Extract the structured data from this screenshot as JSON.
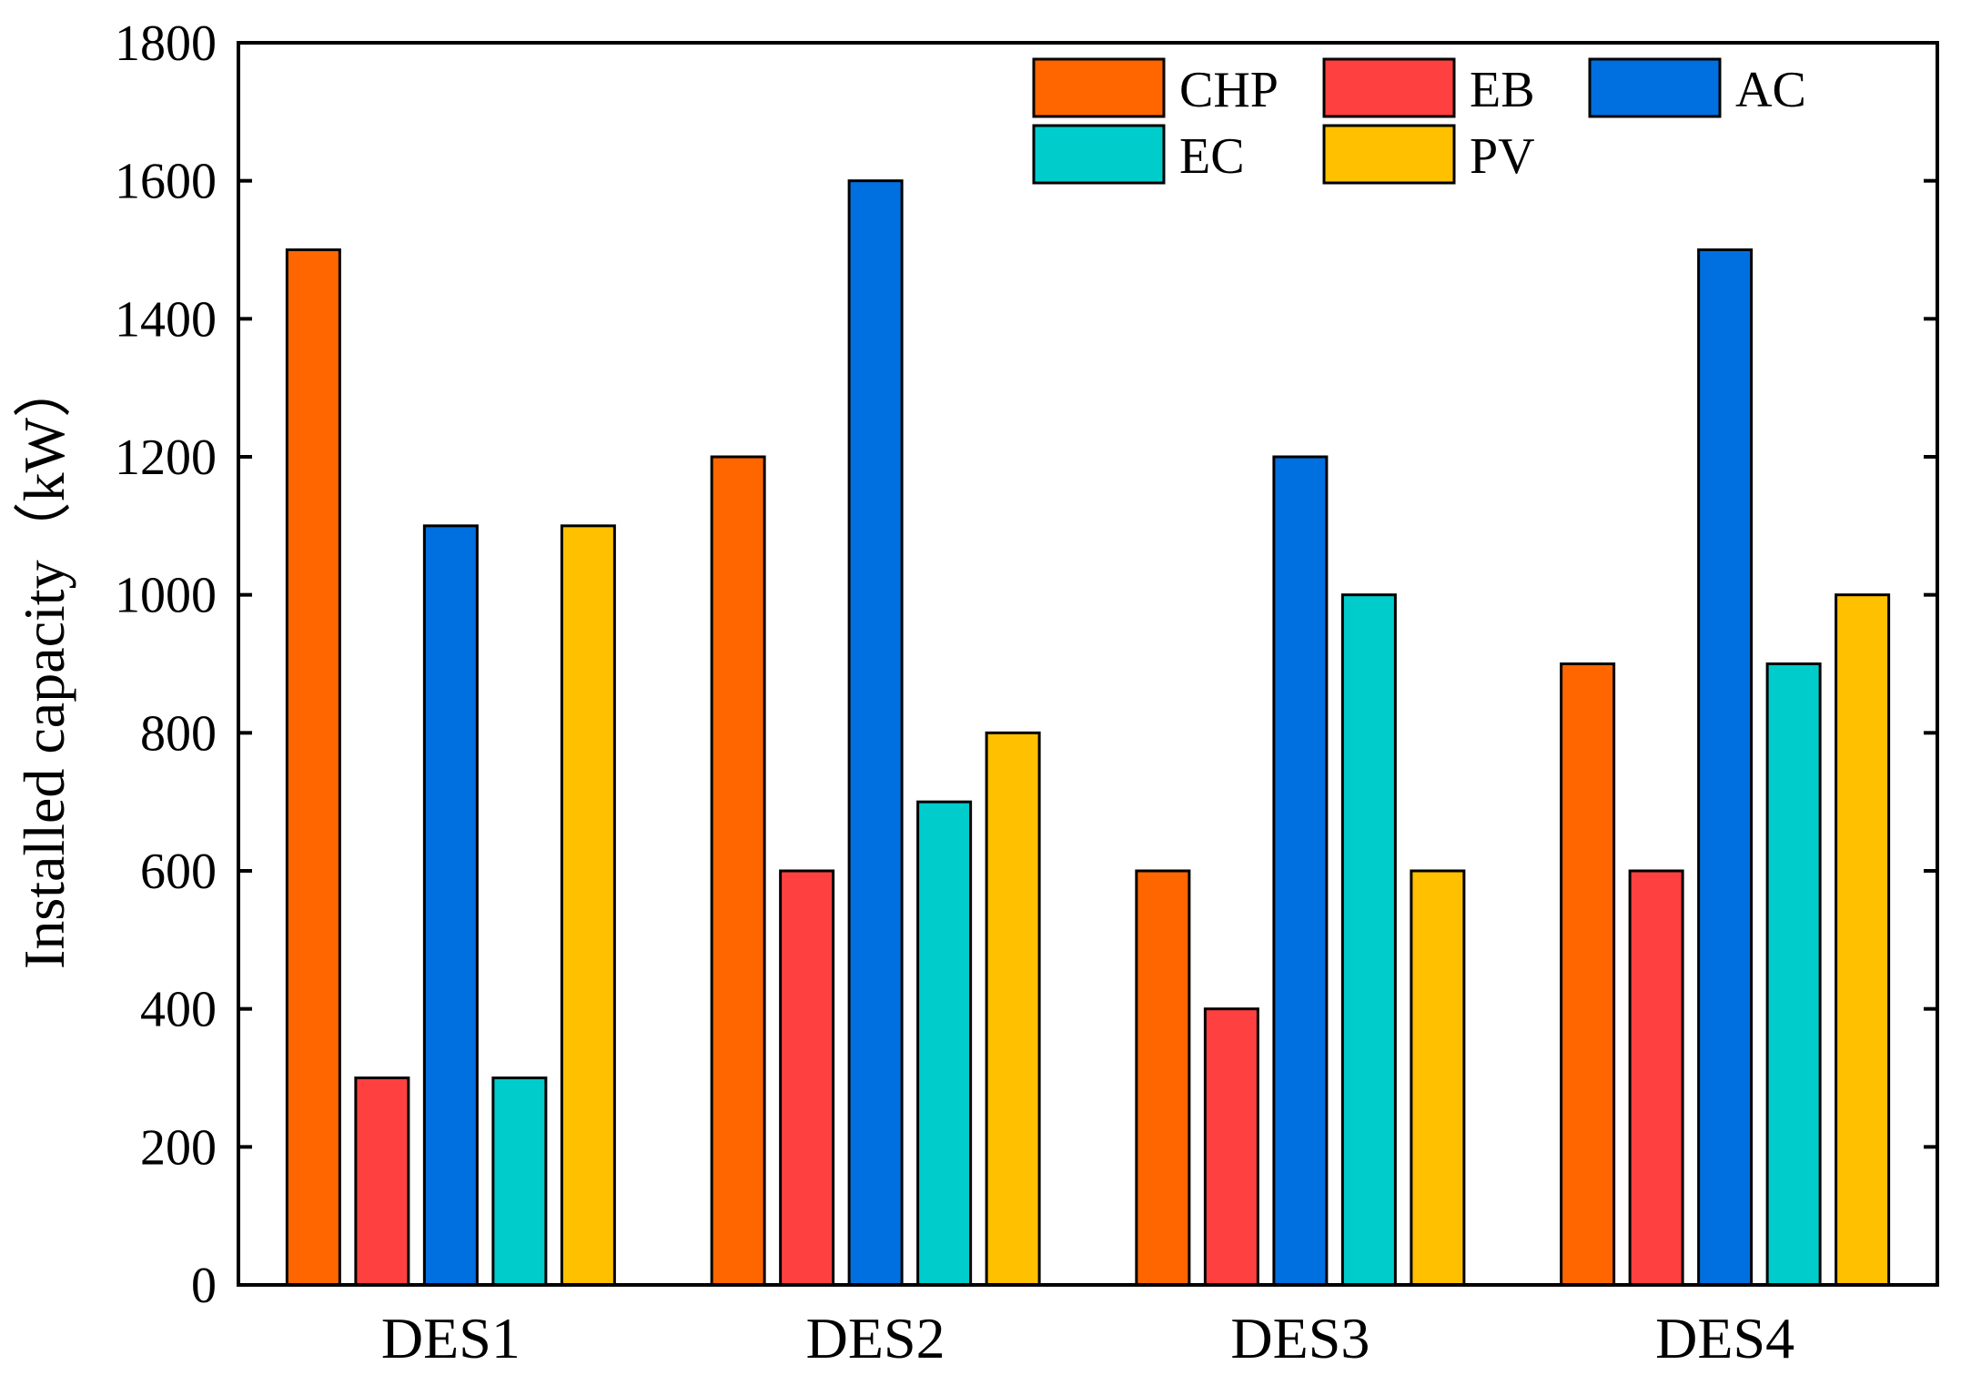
{
  "chart_data": {
    "type": "bar",
    "title": "",
    "xlabel": "",
    "ylabel": "Installed capacity（kW）",
    "ylim": [
      0,
      1800
    ],
    "yticks": [
      0,
      200,
      400,
      600,
      800,
      1000,
      1200,
      1400,
      1600,
      1800
    ],
    "categories": [
      "DES1",
      "DES2",
      "DES3",
      "DES4"
    ],
    "series": [
      {
        "name": "CHP",
        "color": "#FF6600",
        "values": [
          1500,
          1200,
          600,
          900
        ]
      },
      {
        "name": "EB",
        "color": "#FF4040",
        "values": [
          300,
          600,
          400,
          600
        ]
      },
      {
        "name": "AC",
        "color": "#0070E0",
        "values": [
          1100,
          1600,
          1200,
          1500
        ]
      },
      {
        "name": "EC",
        "color": "#00CCCC",
        "values": [
          300,
          700,
          1000,
          900
        ]
      },
      {
        "name": "PV",
        "color": "#FFC000",
        "values": [
          1100,
          800,
          600,
          1000
        ]
      }
    ],
    "legend_position": "top-right",
    "grid": false
  }
}
